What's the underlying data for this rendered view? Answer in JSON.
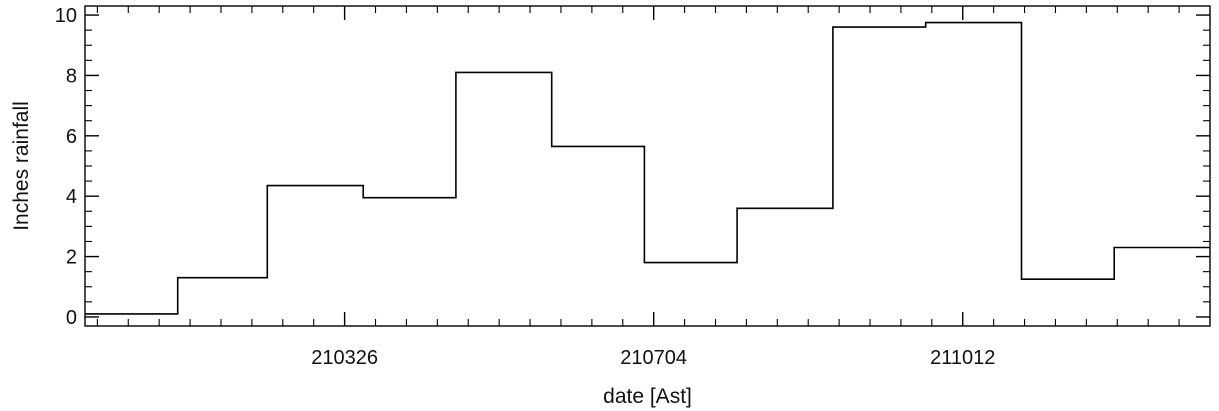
{
  "chart_data": {
    "type": "line",
    "style": "step",
    "title": "",
    "xlabel": "date [Ast]",
    "ylabel": "Inches rainfall",
    "ylim": [
      -0.3,
      10.3
    ],
    "yticks": [
      0,
      2,
      4,
      6,
      8,
      10
    ],
    "xlim": [
      "2021-01-01",
      "2021-12-31"
    ],
    "xticks": [
      {
        "date": "2021-03-26",
        "label": "210326"
      },
      {
        "date": "2021-07-04",
        "label": "210704"
      },
      {
        "date": "2021-10-12",
        "label": "211012"
      }
    ],
    "series": [
      {
        "color": "#000000",
        "points": [
          {
            "start": "2021-01-01",
            "value": 0.1
          },
          {
            "start": "2021-01-31",
            "value": 1.3
          },
          {
            "start": "2021-03-01",
            "value": 4.35
          },
          {
            "start": "2021-04-01",
            "value": 3.95
          },
          {
            "start": "2021-05-01",
            "value": 8.1
          },
          {
            "start": "2021-06-01",
            "value": 5.65
          },
          {
            "start": "2021-07-01",
            "value": 1.8
          },
          {
            "start": "2021-07-31",
            "value": 3.6
          },
          {
            "start": "2021-08-31",
            "value": 9.6
          },
          {
            "start": "2021-09-30",
            "value": 9.75
          },
          {
            "start": "2021-10-31",
            "value": 1.25
          },
          {
            "start": "2021-11-30",
            "value": 2.3
          }
        ]
      }
    ],
    "grid": false,
    "legend": "none"
  }
}
